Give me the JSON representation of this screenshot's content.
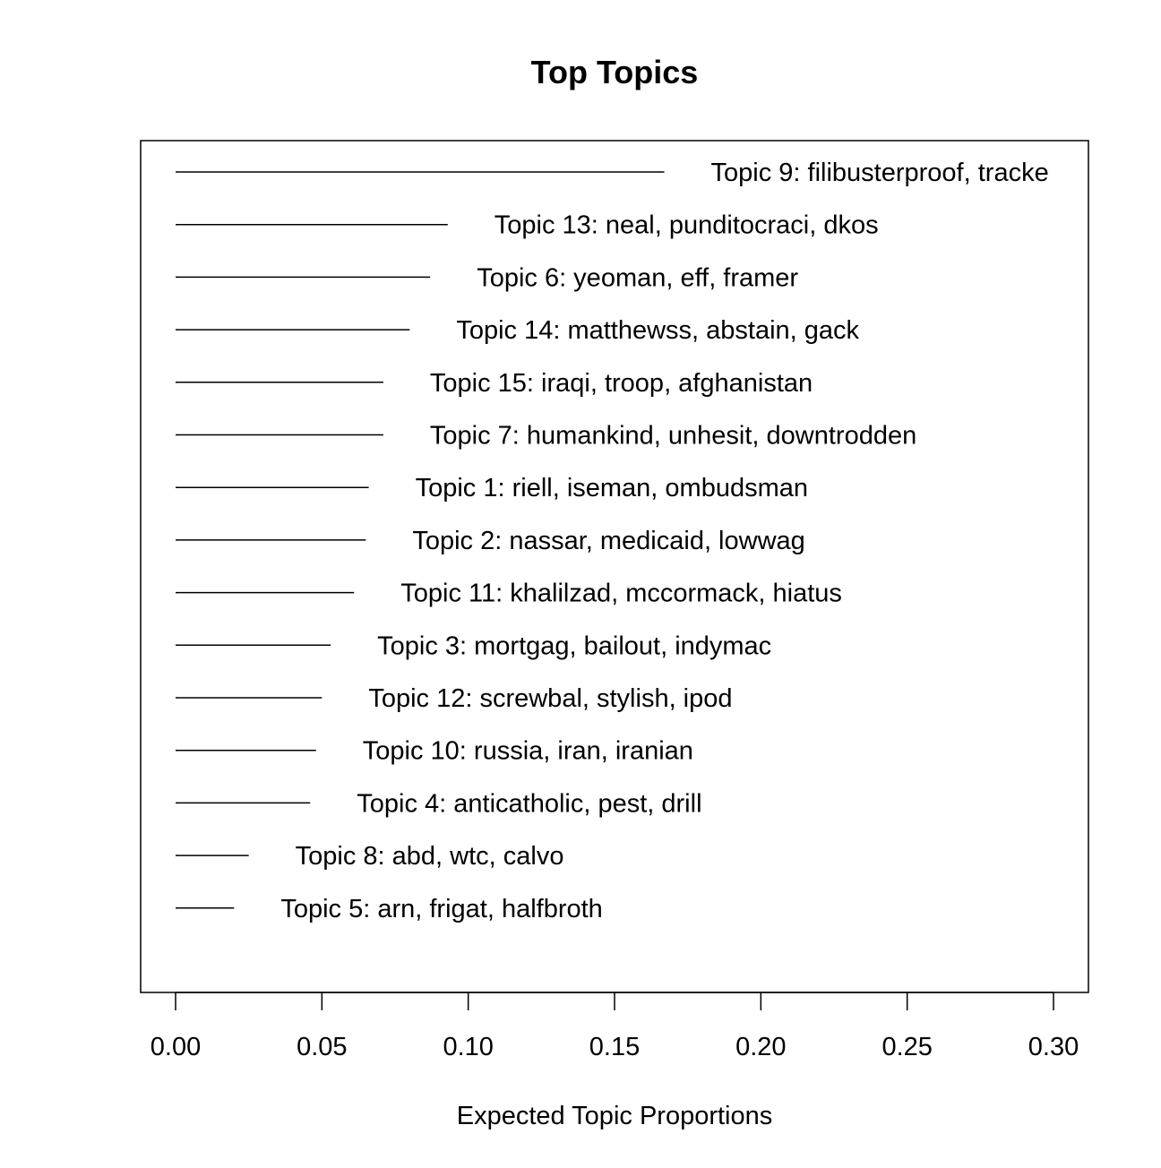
{
  "chart_data": {
    "type": "bar",
    "title": "Top Topics",
    "xlabel": "Expected Topic Proportions",
    "ylabel": "",
    "xlim": [
      0,
      0.31
    ],
    "xticks": [
      "0.00",
      "0.05",
      "0.10",
      "0.15",
      "0.20",
      "0.25",
      "0.30"
    ],
    "xtick_values": [
      0,
      0.05,
      0.1,
      0.15,
      0.2,
      0.25,
      0.3
    ],
    "grid": false,
    "topics": [
      {
        "label": "Topic 9: filibusterproof, tracke",
        "value": 0.167
      },
      {
        "label": "Topic 13: neal, punditocraci, dkos",
        "value": 0.093
      },
      {
        "label": "Topic 6: yeoman, eff, framer",
        "value": 0.087
      },
      {
        "label": "Topic 14: matthewss, abstain, gack",
        "value": 0.08
      },
      {
        "label": "Topic 15: iraqi, troop, afghanistan",
        "value": 0.071
      },
      {
        "label": "Topic 7: humankind, unhesit, downtrodden",
        "value": 0.071
      },
      {
        "label": "Topic 1: riell, iseman, ombudsman",
        "value": 0.066
      },
      {
        "label": "Topic 2: nassar, medicaid, lowwag",
        "value": 0.065
      },
      {
        "label": "Topic 11: khalilzad, mccormack, hiatus",
        "value": 0.061
      },
      {
        "label": "Topic 3: mortgag, bailout, indymac",
        "value": 0.053
      },
      {
        "label": "Topic 12: screwbal, stylish, ipod",
        "value": 0.05
      },
      {
        "label": "Topic 10: russia, iran, iranian",
        "value": 0.048
      },
      {
        "label": "Topic 4: anticatholic, pest, drill",
        "value": 0.046
      },
      {
        "label": "Topic 8: abd, wtc, calvo",
        "value": 0.025
      },
      {
        "label": "Topic 5: arn, frigat, halfbroth",
        "value": 0.02
      }
    ]
  }
}
